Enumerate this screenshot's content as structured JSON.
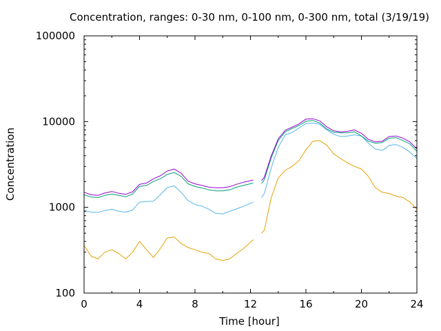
{
  "chart_data": {
    "type": "line",
    "title": "Concentration, ranges: 0-30 nm, 0-100 nm, 0-300 nm, total (3/19/19)",
    "xlabel": "Time [hour]",
    "ylabel": "Concentration",
    "xlim": [
      0,
      24
    ],
    "ylim": [
      100,
      100000
    ],
    "yscale": "log",
    "xticks": [
      0,
      4,
      8,
      12,
      16,
      20,
      24
    ],
    "yticks": [
      100,
      1000,
      10000,
      100000
    ],
    "xtick_labels": [
      "0",
      "4",
      "8",
      "12",
      "16",
      "20",
      "24"
    ],
    "ytick_labels": [
      "100",
      "1000",
      "10000",
      "100000"
    ],
    "grid": false,
    "legend": "none",
    "series": [
      {
        "color": "#e69f00",
        "x": [
          0,
          0.5,
          1,
          1.5,
          2,
          2.5,
          3,
          3.5,
          4,
          4.5,
          5,
          5.5,
          6,
          6.5,
          7,
          7.5,
          8,
          8.5,
          9,
          9.5,
          10,
          10.5,
          11,
          11.5,
          12.2,
          null,
          12.8,
          13,
          13.5,
          14,
          14.5,
          15,
          15.5,
          16,
          16.5,
          17,
          17.5,
          18,
          18.5,
          19,
          19.5,
          20,
          20.5,
          21,
          21.5,
          22,
          22.5,
          23,
          23.5,
          24
        ],
        "y": [
          360,
          270,
          250,
          300,
          320,
          290,
          250,
          300,
          400,
          320,
          260,
          330,
          440,
          450,
          380,
          340,
          320,
          300,
          290,
          250,
          240,
          250,
          290,
          330,
          420,
          null,
          500,
          540,
          1300,
          2200,
          2700,
          3000,
          3500,
          4700,
          5900,
          6000,
          5300,
          4200,
          3700,
          3300,
          3000,
          2800,
          2300,
          1700,
          1500,
          1450,
          1350,
          1300,
          1150,
          950
        ]
      },
      {
        "color": "#56b4e9",
        "x": [
          0,
          0.5,
          1,
          1.5,
          2,
          2.5,
          3,
          3.5,
          4,
          4.5,
          5,
          5.5,
          6,
          6.5,
          7,
          7.5,
          8,
          8.5,
          9,
          9.5,
          10,
          10.5,
          11,
          11.5,
          12.2,
          null,
          12.8,
          13,
          13.5,
          14,
          14.5,
          15,
          15.5,
          16,
          16.5,
          17,
          17.5,
          18,
          18.5,
          19,
          19.5,
          20,
          20.5,
          21,
          21.5,
          22,
          22.5,
          23,
          23.5,
          24
        ],
        "y": [
          920,
          880,
          870,
          920,
          950,
          900,
          880,
          930,
          1150,
          1170,
          1180,
          1400,
          1700,
          1780,
          1500,
          1200,
          1080,
          1030,
          950,
          850,
          840,
          900,
          960,
          1030,
          1150,
          null,
          1300,
          1450,
          2900,
          5000,
          7000,
          7500,
          8400,
          9500,
          9600,
          9300,
          8000,
          7100,
          6700,
          6800,
          7000,
          6800,
          5600,
          4800,
          4600,
          5300,
          5400,
          5000,
          4400,
          3700
        ]
      },
      {
        "color": "#009e73",
        "x": [
          0,
          0.5,
          1,
          1.5,
          2,
          2.5,
          3,
          3.5,
          4,
          4.5,
          5,
          5.5,
          6,
          6.5,
          7,
          7.5,
          8,
          8.5,
          9,
          9.5,
          10,
          10.5,
          11,
          11.5,
          12.2,
          null,
          12.8,
          13,
          13.5,
          14,
          14.5,
          15,
          15.5,
          16,
          16.5,
          17,
          17.5,
          18,
          18.5,
          19,
          19.5,
          20,
          20.5,
          21,
          21.5,
          22,
          22.5,
          23,
          23.5,
          24
        ],
        "y": [
          1400,
          1320,
          1300,
          1380,
          1430,
          1380,
          1330,
          1430,
          1750,
          1800,
          2000,
          2150,
          2420,
          2550,
          2300,
          1880,
          1750,
          1680,
          1600,
          1560,
          1560,
          1600,
          1720,
          1800,
          1920,
          null,
          1900,
          2100,
          3800,
          6000,
          7600,
          8300,
          9000,
          10100,
          10300,
          9600,
          8200,
          7500,
          7400,
          7400,
          7600,
          6800,
          5900,
          5600,
          5700,
          6400,
          6500,
          6000,
          5500,
          4500
        ]
      },
      {
        "color": "#9400d3",
        "x": [
          0,
          0.5,
          1,
          1.5,
          2,
          2.5,
          3,
          3.5,
          4,
          4.5,
          5,
          5.5,
          6,
          6.5,
          7,
          7.5,
          8,
          8.5,
          9,
          9.5,
          10,
          10.5,
          11,
          11.5,
          12.2,
          null,
          12.8,
          13,
          13.5,
          14,
          14.5,
          15,
          15.5,
          16,
          16.5,
          17,
          17.5,
          18,
          18.5,
          19,
          19.5,
          20,
          20.5,
          21,
          21.5,
          22,
          22.5,
          23,
          23.5,
          24
        ],
        "y": [
          1500,
          1400,
          1380,
          1470,
          1530,
          1460,
          1420,
          1520,
          1850,
          1920,
          2150,
          2330,
          2650,
          2800,
          2500,
          2020,
          1880,
          1800,
          1720,
          1690,
          1690,
          1740,
          1860,
          1960,
          2080,
          null,
          2050,
          2250,
          4000,
          6300,
          7900,
          8600,
          9400,
          10700,
          10800,
          10200,
          8700,
          7800,
          7600,
          7700,
          8000,
          7300,
          6200,
          5800,
          5900,
          6700,
          6800,
          6400,
          5800,
          4800
        ]
      }
    ]
  }
}
